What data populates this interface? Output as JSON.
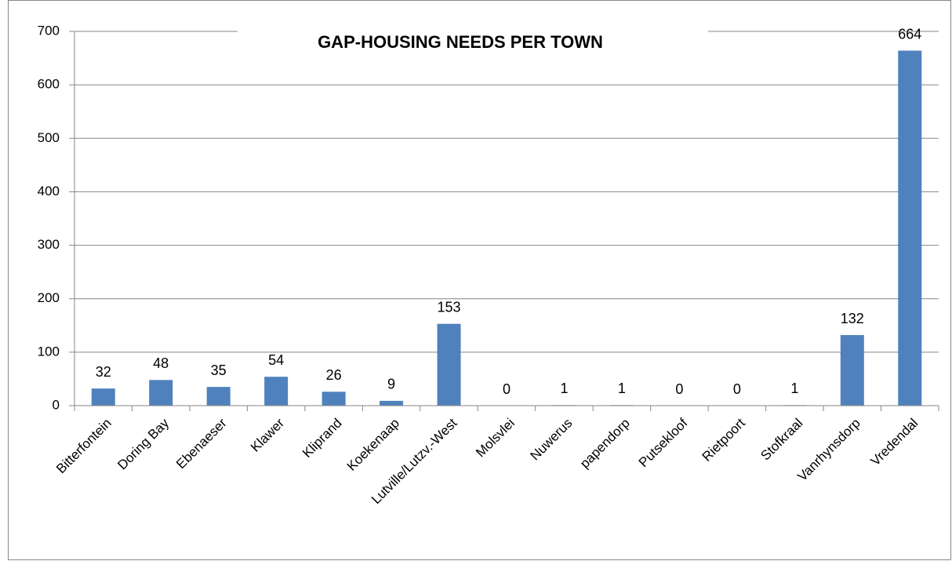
{
  "chart_data": {
    "type": "bar",
    "title": "GAP-HOUSING NEEDS PER TOWN",
    "categories": [
      "Bitterfontein",
      "Doring Bay",
      "Ebenaeser",
      "Klawer",
      "Kliprand",
      "Koekenaap",
      "Lutville/Lutzv.-West",
      "Molsvlei",
      "Nuwerus",
      "papendorp",
      "Putsekloof",
      "Rietpoort",
      "Stofkraal",
      "Vanrhynsdorp",
      "Vredendal"
    ],
    "values": [
      32,
      48,
      35,
      54,
      26,
      9,
      153,
      0,
      1,
      1,
      0,
      0,
      1,
      132,
      664
    ],
    "color": "#4f81bd",
    "ylim": [
      0,
      700
    ],
    "yticks": [
      0,
      100,
      200,
      300,
      400,
      500,
      600,
      700
    ],
    "grid": true
  }
}
